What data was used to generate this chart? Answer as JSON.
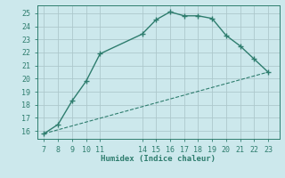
{
  "curve_x": [
    7,
    8,
    9,
    10,
    11,
    14,
    15,
    16,
    17,
    18,
    19,
    20,
    21,
    22,
    23
  ],
  "curve_y": [
    15.8,
    16.5,
    18.3,
    19.8,
    21.9,
    23.4,
    24.5,
    25.1,
    24.8,
    24.8,
    24.6,
    23.3,
    22.5,
    21.5,
    20.5
  ],
  "line_x": [
    7,
    23
  ],
  "line_y": [
    15.8,
    20.5
  ],
  "color": "#2e7d6e",
  "bg_color": "#cce8ec",
  "grid_color": "#adc8cc",
  "xlabel": "Humidex (Indice chaleur)",
  "xlim": [
    6.5,
    23.8
  ],
  "ylim": [
    15.4,
    25.6
  ],
  "xticks": [
    7,
    8,
    9,
    10,
    11,
    14,
    15,
    16,
    17,
    18,
    19,
    20,
    21,
    22,
    23
  ],
  "yticks": [
    16,
    17,
    18,
    19,
    20,
    21,
    22,
    23,
    24,
    25
  ],
  "label_fontsize": 6.5,
  "tick_fontsize": 6.0
}
